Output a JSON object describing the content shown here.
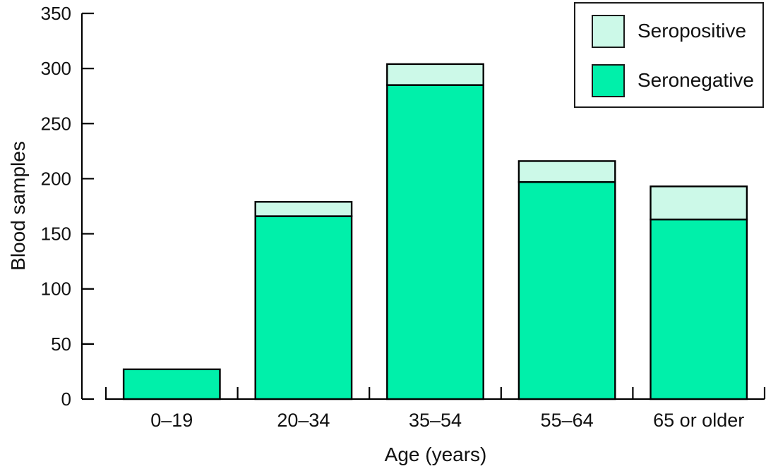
{
  "chart_data": {
    "type": "bar",
    "stacked": true,
    "title": "",
    "xlabel": "Age (years)",
    "ylabel": "Blood samples",
    "categories": [
      "0–19",
      "20–34",
      "35–54",
      "55–64",
      "65 or older"
    ],
    "series": [
      {
        "name": "Seronegative",
        "color": "#00f0aa",
        "values": [
          27,
          166,
          285,
          197,
          163
        ]
      },
      {
        "name": "Seropositive",
        "color": "#ccf9e8",
        "values": [
          0,
          13,
          19,
          19,
          30
        ]
      }
    ],
    "totals": [
      27,
      179,
      304,
      216,
      193
    ],
    "ylim": [
      0,
      350
    ],
    "yticks": [
      0,
      50,
      100,
      150,
      200,
      250,
      300,
      350
    ],
    "grid": false,
    "legend_position": "top-right",
    "legend_order": [
      "Seropositive",
      "Seronegative"
    ],
    "bar_edge_color": "#000000",
    "axis_color": "#000000"
  }
}
